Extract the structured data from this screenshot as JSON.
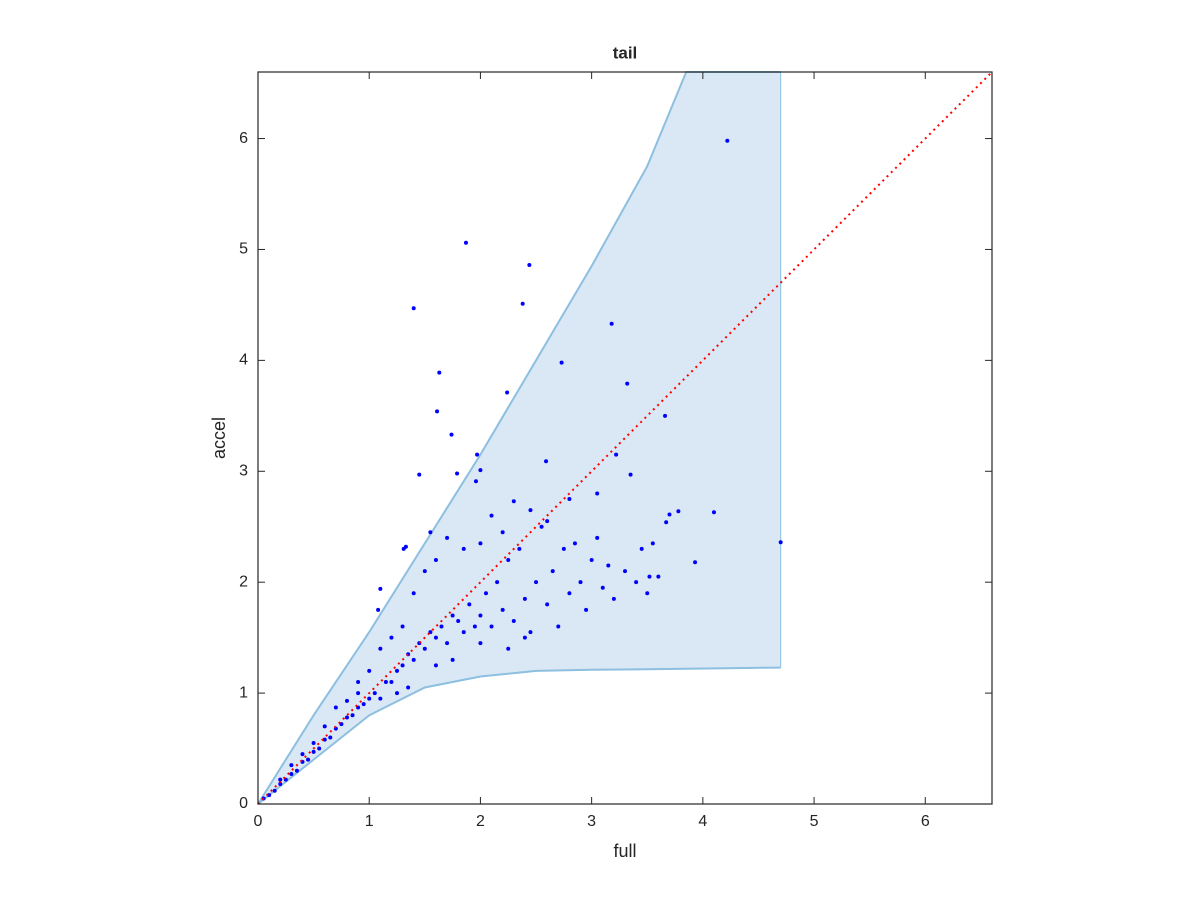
{
  "chart_data": {
    "type": "scatter",
    "title": "tail",
    "xlabel": "full",
    "ylabel": "accel",
    "xlim": [
      0,
      6.6
    ],
    "ylim": [
      0,
      6.6
    ],
    "xticks": [
      0,
      1,
      2,
      3,
      4,
      5,
      6
    ],
    "yticks": [
      0,
      1,
      2,
      3,
      4,
      5,
      6
    ],
    "grid": false,
    "color": "#0000ff",
    "x": [
      4.22,
      1.87,
      2.44,
      1.4,
      2.38,
      3.18,
      2.73,
      1.63,
      3.32,
      2.24,
      1.61,
      3.66,
      1.74,
      1.97,
      3.22,
      2.59,
      1.45,
      1.79,
      3.35,
      2.0,
      1.96,
      4.7,
      4.1,
      3.78,
      3.7,
      3.67,
      3.93,
      3.52,
      3.5,
      1.31,
      1.33,
      1.1,
      1.08,
      0.05,
      0.1,
      0.15,
      0.2,
      0.25,
      0.3,
      0.35,
      0.4,
      0.45,
      0.5,
      0.55,
      0.6,
      0.65,
      0.7,
      0.75,
      0.8,
      0.85,
      0.9,
      0.95,
      1.0,
      0.7,
      0.8,
      0.9,
      1.05,
      1.1,
      1.2,
      1.25,
      1.3,
      1.35,
      1.4,
      1.45,
      1.5,
      1.55,
      1.6,
      1.65,
      1.7,
      1.75,
      1.8,
      1.85,
      1.9,
      1.95,
      2.0,
      2.05,
      2.1,
      2.15,
      2.2,
      2.25,
      2.3,
      2.35,
      2.4,
      2.45,
      2.5,
      2.55,
      2.6,
      2.65,
      2.7,
      2.75,
      2.8,
      2.85,
      2.9,
      2.95,
      3.0,
      3.05,
      3.1,
      3.15,
      3.2,
      3.3,
      3.4,
      3.45,
      3.55,
      3.6,
      1.2,
      1.3,
      1.4,
      1.5,
      1.6,
      1.7,
      1.55,
      1.85,
      2.0,
      2.2,
      2.3,
      2.6,
      2.8,
      3.05,
      2.1,
      2.45,
      1.0,
      1.1,
      0.9,
      1.15,
      1.35,
      1.25,
      0.6,
      0.5,
      0.4,
      0.3,
      0.2,
      1.75,
      2.0,
      1.6,
      2.4,
      2.25
    ],
    "y": [
      5.98,
      5.06,
      4.86,
      4.47,
      4.51,
      4.33,
      3.98,
      3.89,
      3.79,
      3.71,
      3.54,
      3.5,
      3.33,
      3.15,
      3.15,
      3.09,
      2.97,
      2.98,
      2.97,
      3.01,
      2.91,
      2.36,
      2.63,
      2.64,
      2.61,
      2.54,
      2.18,
      2.05,
      1.9,
      2.3,
      2.32,
      1.94,
      1.75,
      0.05,
      0.08,
      0.12,
      0.18,
      0.22,
      0.27,
      0.3,
      0.38,
      0.4,
      0.47,
      0.5,
      0.58,
      0.6,
      0.68,
      0.72,
      0.78,
      0.8,
      0.87,
      0.9,
      0.95,
      0.87,
      0.93,
      1.0,
      1.0,
      0.95,
      1.1,
      1.2,
      1.25,
      1.35,
      1.3,
      1.45,
      1.4,
      1.55,
      1.5,
      1.6,
      1.45,
      1.7,
      1.65,
      1.55,
      1.8,
      1.6,
      1.7,
      1.9,
      1.6,
      2.0,
      1.75,
      2.2,
      1.65,
      2.3,
      1.85,
      1.55,
      2.0,
      2.5,
      1.8,
      2.1,
      1.6,
      2.3,
      1.9,
      2.35,
      2.0,
      1.75,
      2.2,
      2.4,
      1.95,
      2.15,
      1.85,
      2.1,
      2.0,
      2.3,
      2.35,
      2.05,
      1.5,
      1.6,
      1.9,
      2.1,
      2.2,
      2.4,
      2.45,
      2.3,
      2.35,
      2.45,
      2.73,
      2.55,
      2.75,
      2.8,
      2.6,
      2.65,
      1.2,
      1.4,
      1.1,
      1.1,
      1.05,
      1.0,
      0.7,
      0.55,
      0.45,
      0.35,
      0.22,
      1.3,
      1.45,
      1.25,
      1.5,
      1.4
    ],
    "band": {
      "color": "#d9e8f4",
      "edge_color": "#8cbfe0",
      "x": [
        0,
        0.5,
        1,
        1.5,
        2,
        2.5,
        3,
        3.5,
        3.85,
        4.3,
        4.7
      ],
      "upper": [
        0,
        0.8,
        1.55,
        2.35,
        3.15,
        4.0,
        4.85,
        5.75,
        6.6,
        6.6,
        6.6
      ],
      "lower": [
        0,
        0.4,
        0.8,
        1.05,
        1.15,
        1.2,
        1.21,
        1.215,
        1.22,
        1.225,
        1.23
      ]
    },
    "reference_line": {
      "color": "#ff0000",
      "x": [
        0,
        6.6
      ],
      "y": [
        0,
        6.6
      ]
    }
  }
}
